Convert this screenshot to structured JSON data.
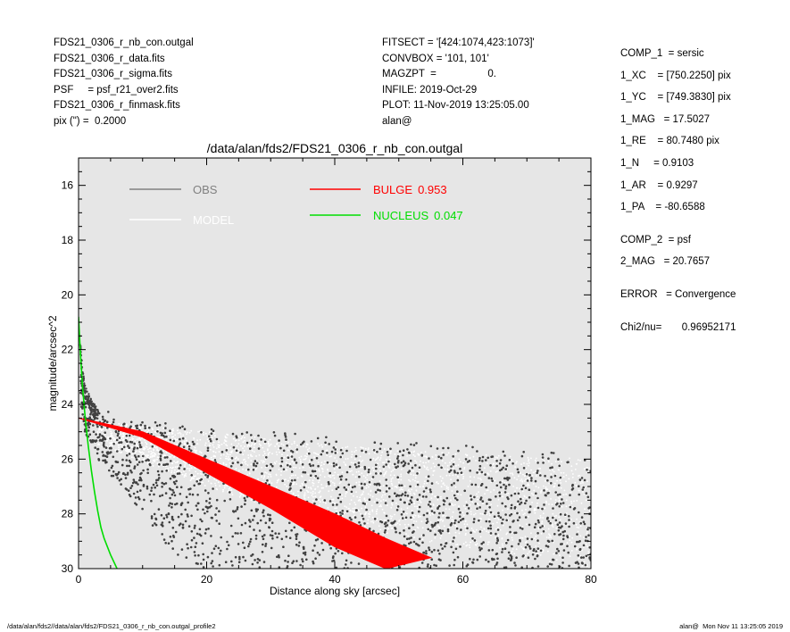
{
  "header_left": [
    "FDS21_0306_r_nb_con.outgal",
    "FDS21_0306_r_data.fits",
    "FDS21_0306_r_sigma.fits",
    "PSF     = psf_r21_over2.fits",
    "FDS21_0306_r_finmask.fits",
    "pix (\") =  0.2000"
  ],
  "header_mid": [
    "FITSECT = '[424:1074,423:1073]'",
    "CONVBOX = '101, 101'",
    "MAGZPT  =                  0.",
    "INFILE: 2019-Oct-29",
    "PLOT: 11-Nov-2019 13:25:05.00",
    "alan@"
  ],
  "header_right": {
    "comp1": [
      "COMP_1  = sersic",
      "1_XC    = [750.2250] pix",
      "1_YC    = [749.3830] pix",
      "1_MAG   = 17.5027",
      "1_RE    = 80.7480 pix",
      "1_N     = 0.9103",
      "1_AR    = 0.9297",
      "1_PA    = -80.6588"
    ],
    "comp2": [
      "COMP_2  = psf",
      "2_MAG   = 20.7657"
    ],
    "error": "ERROR   = Convergence",
    "chi2": "Chi2/nu=       0.96952171"
  },
  "footer": {
    "left": "/data/alan/fds2//data/alan/fds2/FDS21_0306_r_nb_con.outgal_profile2",
    "right": "alan@  Mon Nov 11 13:25:05 2019"
  },
  "chart_data": {
    "type": "scatter",
    "title": "/data/alan/fds2/FDS21_0306_r_nb_con.outgal",
    "xlabel": "Distance along sky [arcsec]",
    "ylabel": "magnitude/arcsec^2",
    "xlim": [
      0,
      80
    ],
    "ylim": [
      30,
      15
    ],
    "y_inverted": true,
    "x_ticks": [
      0,
      20,
      40,
      60,
      80
    ],
    "y_ticks": [
      16,
      18,
      20,
      22,
      24,
      26,
      28,
      30
    ],
    "grid": false,
    "background_color": "#e6e6e6",
    "legend": [
      {
        "label": "OBS",
        "value": "",
        "color": "#808080"
      },
      {
        "label": "MODEL",
        "value": "",
        "color": "#ffffff"
      },
      {
        "label": "BULGE",
        "value": "0.953",
        "color": "#ff0000"
      },
      {
        "label": "NUCLEUS",
        "value": "0.047",
        "color": "#00dd00"
      }
    ],
    "series": [
      {
        "name": "OBS",
        "kind": "points",
        "color": "#404040",
        "upper_envelope": [
          [
            0.3,
            22.6
          ],
          [
            1,
            23.6
          ],
          [
            3,
            24.2
          ],
          [
            10,
            24.5
          ],
          [
            20,
            24.8
          ],
          [
            40,
            25.2
          ],
          [
            60,
            25.5
          ],
          [
            80,
            25.8
          ]
        ],
        "lower_envelope": [
          [
            0.3,
            24.0
          ],
          [
            1,
            25.0
          ],
          [
            3,
            26.0
          ],
          [
            10,
            28.0
          ],
          [
            15,
            29.5
          ],
          [
            20,
            30.0
          ],
          [
            80,
            30.0
          ]
        ]
      },
      {
        "name": "MODEL",
        "kind": "points",
        "color": "#ffffff",
        "upper_envelope": [
          [
            3,
            24.6
          ],
          [
            20,
            25.0
          ],
          [
            40,
            25.5
          ],
          [
            60,
            25.8
          ],
          [
            80,
            26.0
          ]
        ],
        "lower_envelope": [
          [
            3,
            25.5
          ],
          [
            20,
            27.0
          ],
          [
            40,
            28.5
          ],
          [
            60,
            29.2
          ],
          [
            80,
            30.0
          ]
        ]
      },
      {
        "name": "BULGE",
        "kind": "band",
        "color": "#ff0000",
        "upper": [
          [
            0,
            24.5
          ],
          [
            10,
            25.0
          ],
          [
            20,
            26.0
          ],
          [
            30,
            27.0
          ],
          [
            40,
            28.0
          ],
          [
            48,
            28.9
          ],
          [
            55,
            29.6
          ]
        ],
        "lower": [
          [
            0,
            24.5
          ],
          [
            10,
            25.2
          ],
          [
            20,
            26.5
          ],
          [
            30,
            27.8
          ],
          [
            40,
            29.2
          ],
          [
            48,
            30.0
          ]
        ]
      },
      {
        "name": "NUCLEUS",
        "kind": "line",
        "color": "#00dd00",
        "points": [
          [
            0,
            20.8
          ],
          [
            0.3,
            22.2
          ],
          [
            0.6,
            23.3
          ],
          [
            1.0,
            24.4
          ],
          [
            1.5,
            25.5
          ],
          [
            2.0,
            26.4
          ],
          [
            2.5,
            27.2
          ],
          [
            3.0,
            27.9
          ],
          [
            3.5,
            28.5
          ],
          [
            4.0,
            28.9
          ],
          [
            5.0,
            29.5
          ],
          [
            6.0,
            30.0
          ]
        ]
      }
    ]
  }
}
